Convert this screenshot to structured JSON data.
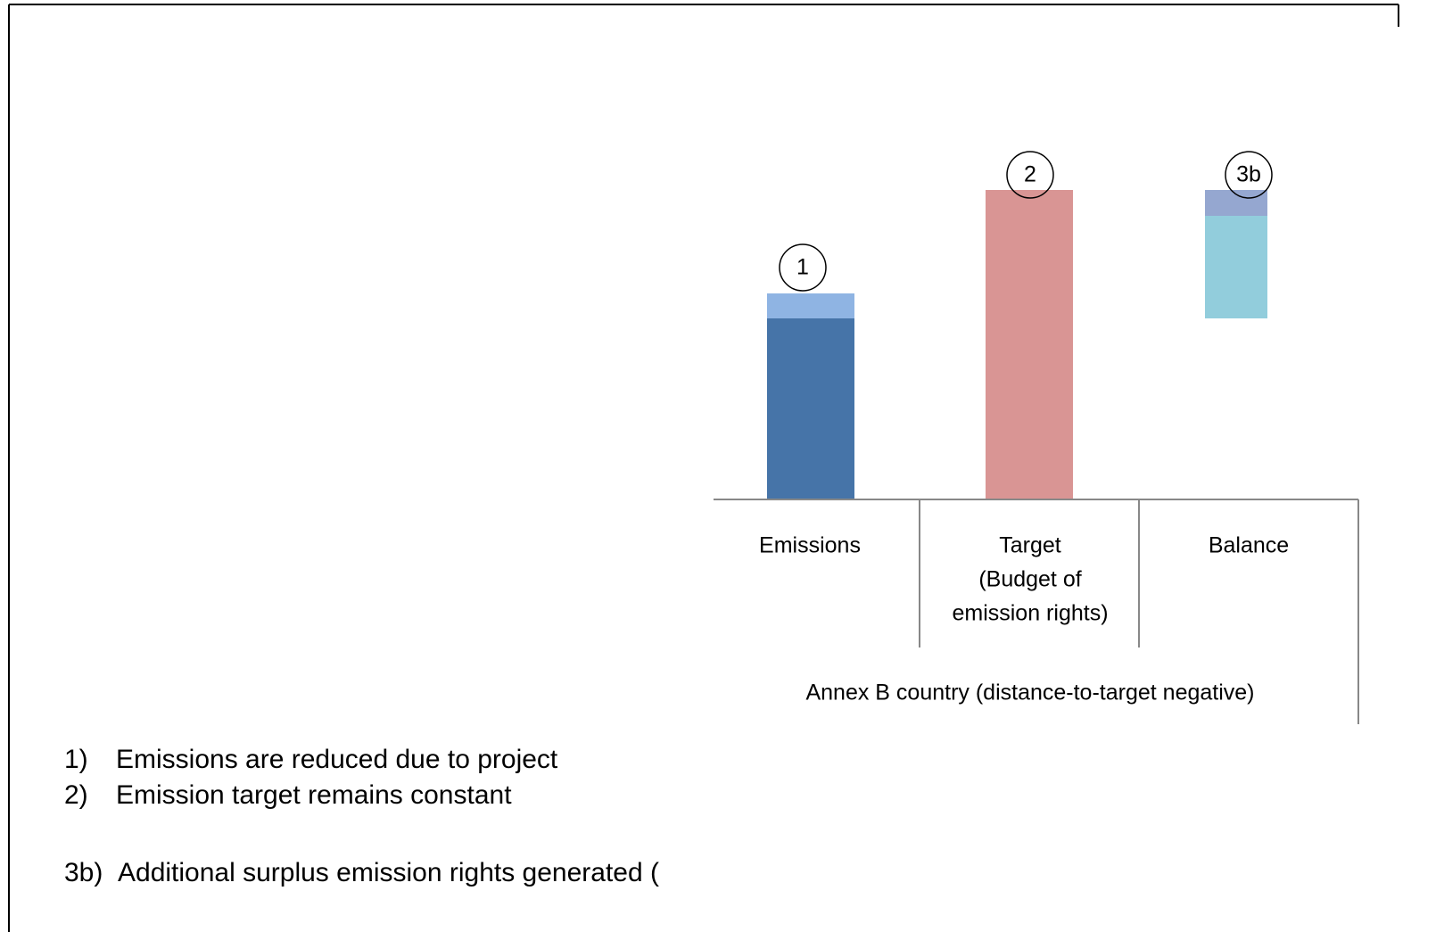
{
  "diagram": {
    "markers": [
      "1",
      "2",
      "3b"
    ],
    "categories": [
      [
        "Emissions"
      ],
      [
        "Target",
        "(Budget of",
        "emission rights)"
      ],
      [
        "Balance"
      ]
    ],
    "group_label": "Annex B country (distance-to-target  negative)",
    "notes": [
      {
        "number": "1)",
        "text": "Emissions are reduced due to project"
      },
      {
        "number": "2)",
        "text": "Emission target remains constant"
      },
      {
        "number": "3b)",
        "text": "Additional surplus emission rights generated ("
      }
    ]
  }
}
